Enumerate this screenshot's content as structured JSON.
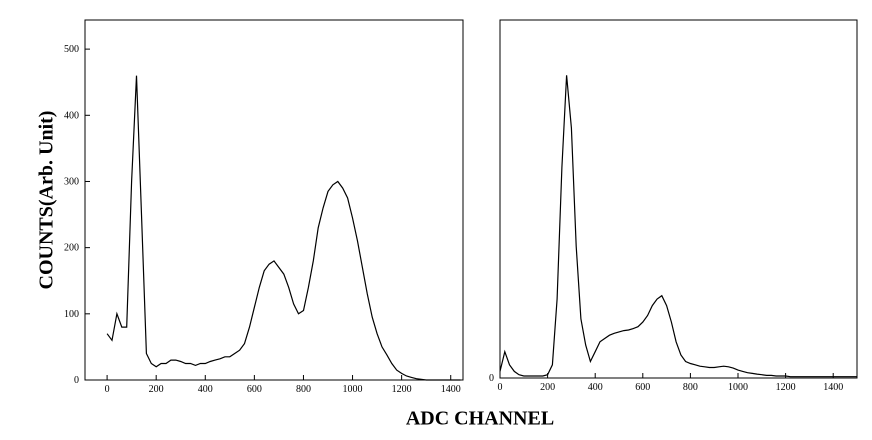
{
  "ylabel": "COUNTS(Arb. Unit)",
  "xlabel": "ADC CHANNEL",
  "chart_data": [
    {
      "type": "line",
      "color": "#000000",
      "xlim": [
        -90,
        1450
      ],
      "ylim": [
        0,
        544
      ],
      "xticks": [
        0,
        200,
        400,
        600,
        800,
        1000,
        1200,
        1400
      ],
      "yticks": [
        0,
        100,
        200,
        300,
        400,
        500
      ],
      "x": [
        0,
        20,
        40,
        60,
        80,
        100,
        120,
        140,
        160,
        180,
        200,
        220,
        240,
        260,
        280,
        300,
        320,
        340,
        360,
        380,
        400,
        420,
        440,
        460,
        480,
        500,
        520,
        540,
        560,
        580,
        600,
        620,
        640,
        660,
        680,
        700,
        720,
        740,
        760,
        780,
        800,
        820,
        840,
        860,
        880,
        900,
        920,
        940,
        960,
        980,
        1000,
        1020,
        1040,
        1060,
        1080,
        1100,
        1120,
        1140,
        1160,
        1180,
        1200,
        1220,
        1240,
        1260,
        1280,
        1300,
        1320,
        1340,
        1360,
        1380,
        1400,
        1420,
        1440
      ],
      "values": [
        70,
        60,
        100,
        80,
        80,
        300,
        460,
        250,
        40,
        25,
        20,
        25,
        25,
        30,
        30,
        28,
        25,
        25,
        22,
        25,
        25,
        28,
        30,
        32,
        35,
        35,
        40,
        45,
        55,
        80,
        110,
        140,
        165,
        175,
        180,
        170,
        160,
        140,
        115,
        100,
        105,
        140,
        180,
        230,
        260,
        285,
        295,
        300,
        290,
        275,
        245,
        210,
        170,
        130,
        95,
        70,
        50,
        38,
        25,
        15,
        10,
        6,
        4,
        2,
        1,
        0,
        0,
        0,
        0,
        0,
        0,
        0,
        0
      ]
    },
    {
      "type": "line",
      "color": "#000000",
      "xlim": [
        0,
        1500
      ],
      "ylim": [
        0,
        544
      ],
      "xticks": [
        0,
        200,
        400,
        600,
        800,
        1000,
        1200,
        1400
      ],
      "yticks": [
        0
      ],
      "x": [
        0,
        20,
        40,
        60,
        80,
        100,
        120,
        140,
        160,
        180,
        200,
        220,
        240,
        260,
        280,
        300,
        320,
        340,
        360,
        380,
        400,
        420,
        440,
        460,
        480,
        500,
        520,
        540,
        560,
        580,
        600,
        620,
        640,
        660,
        680,
        700,
        720,
        740,
        760,
        780,
        800,
        820,
        840,
        860,
        880,
        900,
        920,
        940,
        960,
        980,
        1000,
        1020,
        1040,
        1060,
        1080,
        1100,
        1120,
        1140,
        1160,
        1180,
        1200,
        1220,
        1240,
        1260,
        1280,
        1300,
        1320,
        1340,
        1360,
        1380,
        1400,
        1420,
        1440,
        1460,
        1480,
        1500
      ],
      "values": [
        10,
        40,
        20,
        10,
        5,
        3,
        3,
        3,
        3,
        3,
        5,
        20,
        120,
        320,
        460,
        380,
        200,
        90,
        50,
        25,
        40,
        55,
        60,
        65,
        68,
        70,
        72,
        73,
        75,
        78,
        85,
        95,
        110,
        120,
        125,
        110,
        85,
        55,
        35,
        25,
        22,
        20,
        18,
        17,
        16,
        16,
        17,
        18,
        17,
        15,
        12,
        10,
        8,
        7,
        6,
        5,
        4,
        4,
        3,
        3,
        3,
        2,
        2,
        2,
        2,
        2,
        2,
        2,
        2,
        2,
        2,
        2,
        2,
        2,
        2,
        2
      ]
    }
  ]
}
